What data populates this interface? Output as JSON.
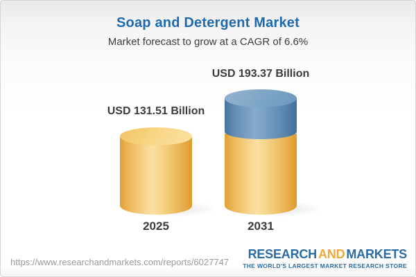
{
  "header": {
    "title": "Soap and Detergent Market",
    "subtitle": "Market forecast to grow at a CAGR of 6.6%"
  },
  "chart_data": {
    "type": "bar",
    "style": "3d-cylinder",
    "categories": [
      "2025",
      "2031"
    ],
    "values": [
      131.51,
      193.37
    ],
    "value_labels": [
      "USD 131.51 Billion",
      "USD 193.37 Billion"
    ],
    "unit": "USD Billion",
    "cagr_percent": 6.6,
    "title": "Soap and Detergent Market",
    "subtitle": "Market forecast to grow at a CAGR of 6.6%",
    "xlabel": "",
    "ylabel": "",
    "legend": "none",
    "grid": false,
    "colors": {
      "base_segment": "#f2c969",
      "growth_segment": "#6f99bf",
      "title_accent": "#1e6ab0",
      "label_text": "#3b3b3b"
    },
    "notes": "2031 bar is split: lower yellow segment equals 2025 level, upper blue segment is forecast growth"
  },
  "footer": {
    "url": "https://www.researchandmarkets.com/reports/6027747",
    "logo": {
      "part1": "RESEARCH",
      "part2": "AND",
      "part3": "MARKETS",
      "tagline": "THE WORLD'S LARGEST MARKET RESEARCH STORE",
      "blue": "#2a6ba4",
      "gold": "#eca93c"
    }
  }
}
